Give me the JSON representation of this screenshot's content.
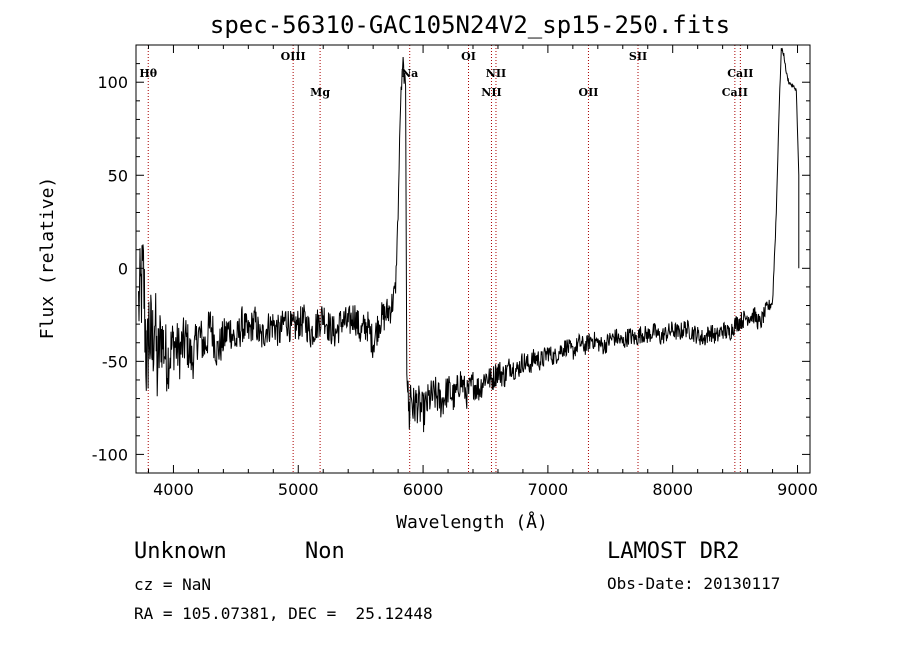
{
  "chart_data": {
    "type": "line",
    "title": "spec-56310-GAC105N24V2_sp15-250.fits",
    "xlabel": "Wavelength (Å)",
    "ylabel": "Flux (relative)",
    "xlim": [
      3700,
      9100
    ],
    "ylim": [
      -110,
      120
    ],
    "xticks": [
      4000,
      5000,
      6000,
      7000,
      8000,
      9000
    ],
    "yticks": [
      -100,
      -50,
      0,
      50,
      100
    ],
    "grid": false,
    "series": [
      {
        "values_x": [
          3720,
          3760,
          3790,
          3800,
          3830,
          3850,
          3870,
          3900,
          3950,
          4000,
          4050,
          4100,
          4150,
          4200,
          4250,
          4300,
          4350,
          4400,
          4450,
          4500,
          4550,
          4600,
          4650,
          4700,
          4750,
          4800,
          4850,
          4900,
          4950,
          5000,
          5050,
          5100,
          5150,
          5200,
          5250,
          5300,
          5350,
          5400,
          5450,
          5500,
          5550,
          5600,
          5650,
          5700,
          5750,
          5780,
          5800,
          5820,
          5840,
          5860,
          5870,
          5880,
          5890,
          5900,
          5920,
          5950,
          6000,
          6050,
          6100,
          6150,
          6200,
          6250,
          6300,
          6350,
          6400,
          6450,
          6500,
          6550,
          6600,
          6650,
          6700,
          6750,
          6800,
          6850,
          6900,
          6950,
          7000,
          7050,
          7100,
          7150,
          7200,
          7250,
          7300,
          7350,
          7400,
          7450,
          7500,
          7550,
          7600,
          7650,
          7700,
          7750,
          7800,
          7850,
          7900,
          7950,
          8000,
          8050,
          8100,
          8150,
          8200,
          8250,
          8300,
          8350,
          8400,
          8450,
          8500,
          8550,
          8600,
          8650,
          8700,
          8750,
          8800,
          8830,
          8850,
          8870,
          8890,
          8910,
          8930,
          8960,
          8990,
          9010,
          9010
        ],
        "values_y": [
          -20,
          -5,
          -60,
          -30,
          -45,
          -25,
          -55,
          -35,
          -50,
          -40,
          -45,
          -38,
          -50,
          -35,
          -42,
          -30,
          -45,
          -38,
          -32,
          -40,
          -30,
          -35,
          -28,
          -38,
          -32,
          -30,
          -35,
          -27,
          -33,
          -30,
          -28,
          -35,
          -30,
          -25,
          -32,
          -35,
          -28,
          -30,
          -25,
          -35,
          -30,
          -40,
          -28,
          -25,
          -20,
          -10,
          30,
          90,
          110,
          95,
          -50,
          -70,
          -80,
          -65,
          -75,
          -72,
          -78,
          -70,
          -68,
          -72,
          -65,
          -70,
          -60,
          -68,
          -62,
          -65,
          -58,
          -60,
          -55,
          -58,
          -52,
          -55,
          -50,
          -52,
          -48,
          -50,
          -45,
          -48,
          -44,
          -42,
          -45,
          -40,
          -42,
          -38,
          -40,
          -42,
          -38,
          -37,
          -40,
          -36,
          -38,
          -35,
          -36,
          -34,
          -37,
          -35,
          -33,
          -35,
          -32,
          -34,
          -36,
          -38,
          -34,
          -37,
          -33,
          -35,
          -30,
          -28,
          -26,
          -25,
          -30,
          -22,
          -18,
          30,
          80,
          118,
          115,
          105,
          100,
          98,
          96,
          50,
          0
        ],
        "noise": [
          25,
          30,
          35,
          30,
          30,
          25,
          25,
          20,
          18,
          15,
          15,
          14,
          12,
          12,
          12,
          12,
          11,
          11,
          10,
          10,
          10,
          9,
          9,
          9,
          9,
          9,
          9,
          9,
          9,
          9,
          9,
          9,
          9,
          9,
          9,
          9,
          9,
          9,
          9,
          9,
          9,
          9,
          9,
          9,
          9,
          5,
          5,
          5,
          5,
          5,
          10,
          12,
          12,
          12,
          12,
          11,
          11,
          10,
          10,
          10,
          9,
          9,
          8,
          8,
          8,
          8,
          7,
          7,
          7,
          7,
          6,
          6,
          6,
          6,
          6,
          6,
          5,
          5,
          5,
          5,
          5,
          5,
          5,
          5,
          5,
          5,
          5,
          5,
          5,
          5,
          5,
          5,
          5,
          5,
          5,
          5,
          5,
          5,
          5,
          5,
          5,
          5,
          5,
          5,
          5,
          5,
          5,
          5,
          5,
          5,
          5,
          4,
          3,
          2,
          2,
          1,
          1,
          1,
          1,
          1,
          1,
          0,
          0
        ]
      }
    ],
    "lines": [
      {
        "label": "Hθ",
        "x": 3798,
        "row": 1
      },
      {
        "label": "OIII",
        "x": 4959,
        "row": 0
      },
      {
        "label": "Mg",
        "x": 5175,
        "row": 2
      },
      {
        "label": "Na",
        "x": 5893,
        "row": 1
      },
      {
        "label": "OI",
        "x": 6364,
        "row": 0
      },
      {
        "label": "NII",
        "x": 6548,
        "row": 2
      },
      {
        "label": "NII",
        "x": 6584,
        "row": 1
      },
      {
        "label": "OII",
        "x": 7325,
        "row": 2
      },
      {
        "label": "SII",
        "x": 7722,
        "row": 0
      },
      {
        "label": "CaII",
        "x": 8498,
        "row": 2
      },
      {
        "label": "CaII",
        "x": 8542,
        "row": 1
      }
    ],
    "line_color": "#aa0000"
  },
  "info": {
    "object_class": "Unknown",
    "subclass": "Non",
    "cz": "cz = NaN",
    "radec": "RA = 105.07381, DEC =  25.12448",
    "survey": "LAMOST DR2",
    "obs_date": "Obs-Date: 20130117"
  }
}
